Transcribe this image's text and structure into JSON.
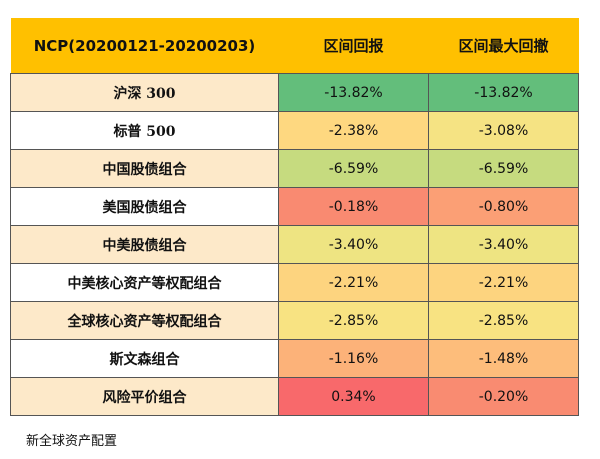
{
  "table": {
    "header": [
      "NCP(20200121-20200203)",
      "区间回报",
      "区间最大回撤"
    ],
    "rows": [
      [
        "沪深 300",
        "-13.82%",
        "-13.82%"
      ],
      [
        "标普 500",
        "-2.38%",
        "-3.08%"
      ],
      [
        "中国股债组合",
        "-6.59%",
        "-6.59%"
      ],
      [
        "美国股债组合",
        "-0.18%",
        "-0.80%"
      ],
      [
        "中美股债组合",
        "-3.40%",
        "-3.40%"
      ],
      [
        "中美核心资产等权配组合",
        "-2.21%",
        "-2.21%"
      ],
      [
        "全球核心资产等权配组合",
        "-2.85%",
        "-2.85%"
      ],
      [
        "斯文森组合",
        "-1.16%",
        "-1.48%"
      ],
      [
        "风险平价组合",
        "0.34%",
        "-0.20%"
      ]
    ]
  },
  "footer": "新全球资产配置"
}
